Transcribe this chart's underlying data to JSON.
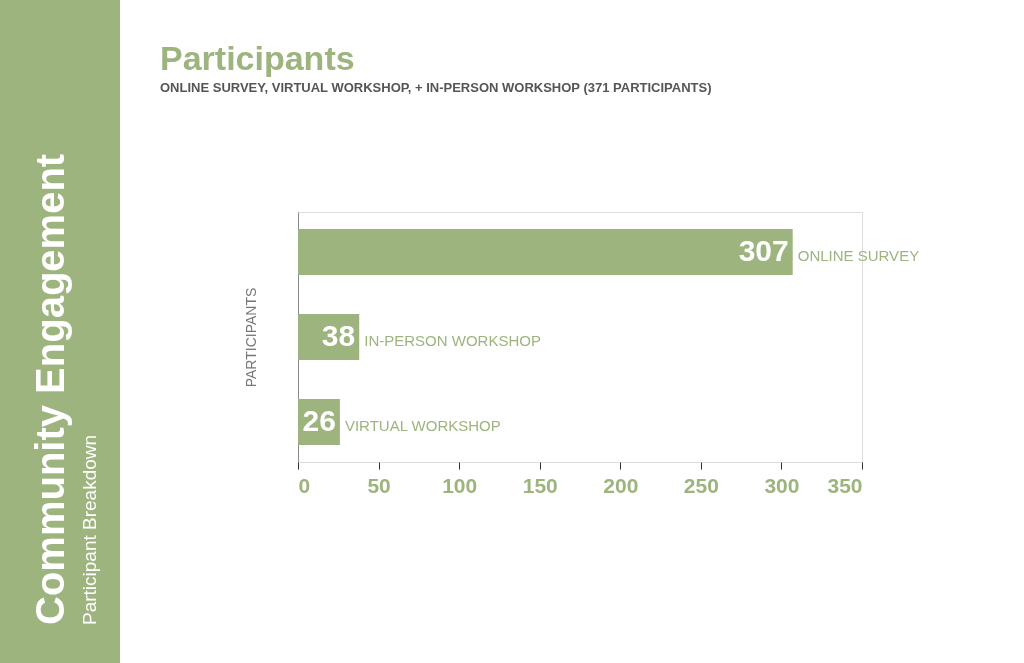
{
  "chart_data": {
    "type": "bar",
    "orientation": "horizontal",
    "title": "Participants",
    "subtitle": "ONLINE SURVEY, VIRTUAL WORKSHOP, + IN-PERSON WORKSHOP (371 PARTICIPANTS)",
    "ylabel": "PARTICIPANTS",
    "categories": [
      "ONLINE SURVEY",
      "IN-PERSON WORKSHOP",
      "VIRTUAL WORKSHOP"
    ],
    "values": [
      307,
      38,
      26
    ],
    "color": "#9db47e",
    "xlim": [
      0,
      350
    ],
    "xticks": [
      0,
      50,
      100,
      150,
      200,
      250,
      300,
      350
    ],
    "data_labels": true,
    "grid": false,
    "annotations": [
      "Community Engagement",
      "Participant Breakdown"
    ]
  }
}
